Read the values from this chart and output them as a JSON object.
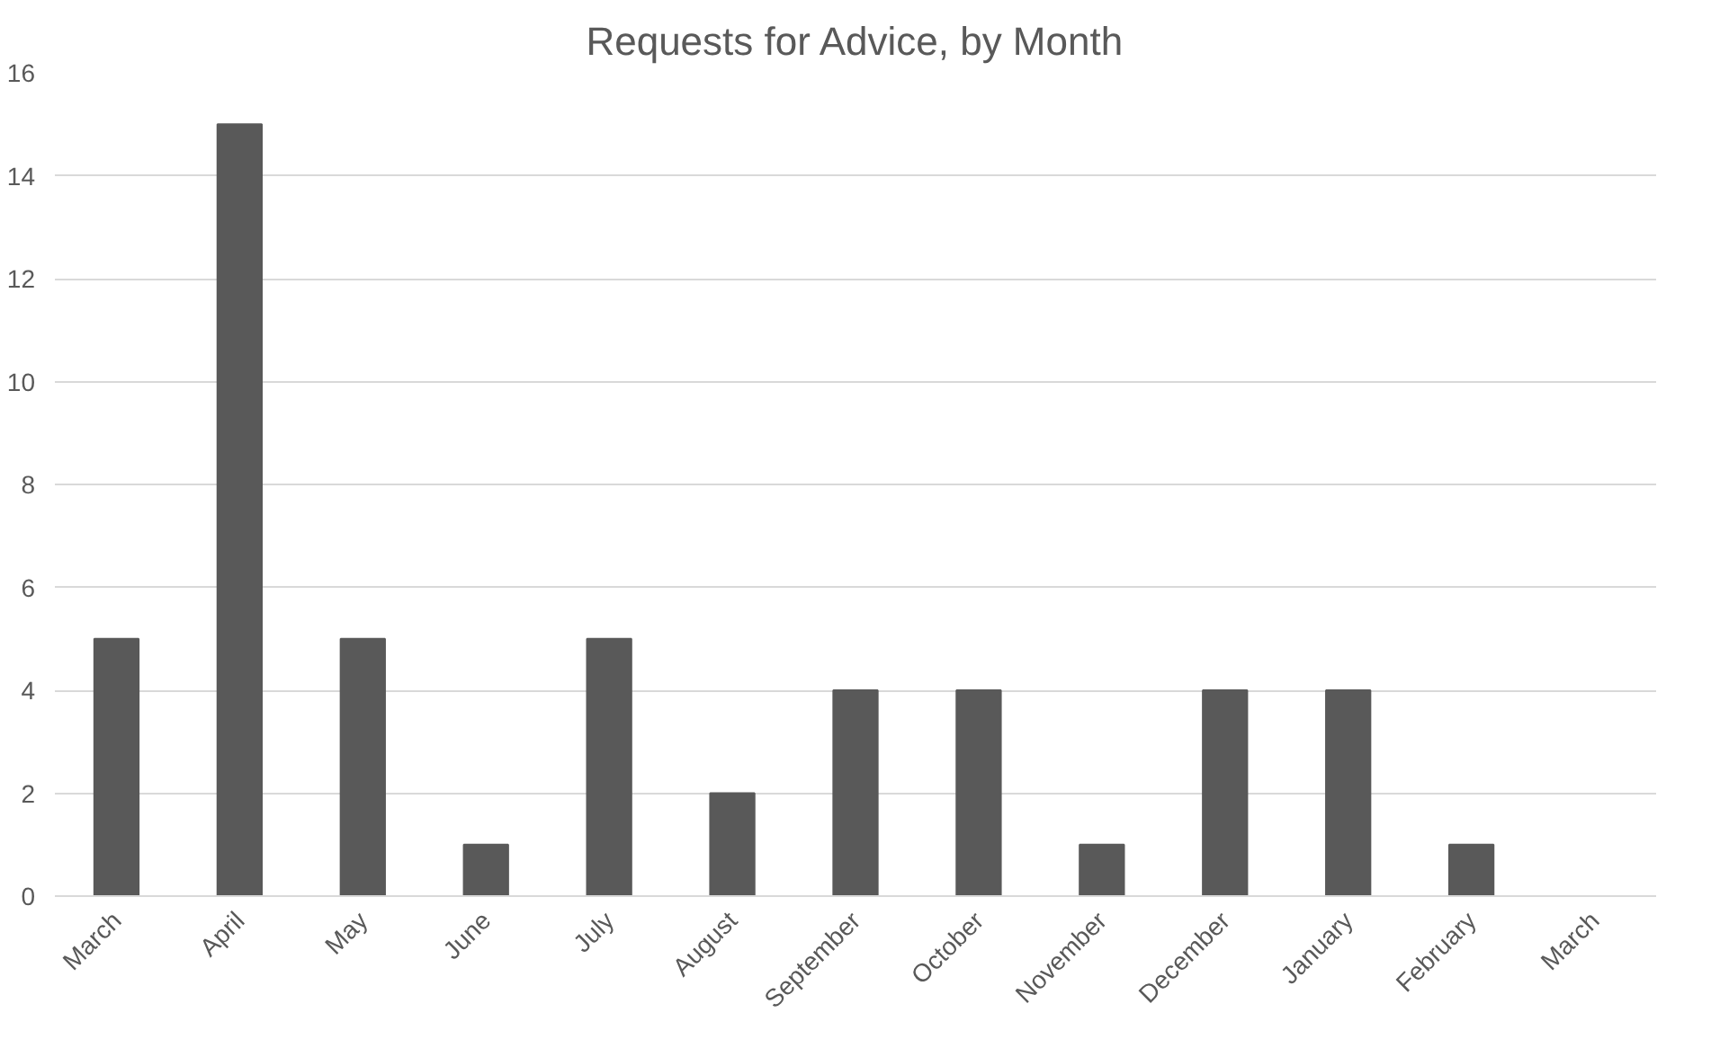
{
  "chart_data": {
    "type": "bar",
    "title": "Requests for Advice, by Month",
    "categories": [
      "March",
      "April",
      "May",
      "June",
      "July",
      "August",
      "September",
      "October",
      "November",
      "December",
      "January",
      "February",
      "March"
    ],
    "values": [
      5,
      15,
      5,
      1,
      5,
      2,
      4,
      4,
      1,
      4,
      4,
      1,
      0
    ],
    "color": "#595959",
    "ylim": [
      0,
      16
    ],
    "yticks": [
      0,
      2,
      4,
      6,
      8,
      10,
      12,
      14,
      16
    ],
    "grid": "y"
  }
}
